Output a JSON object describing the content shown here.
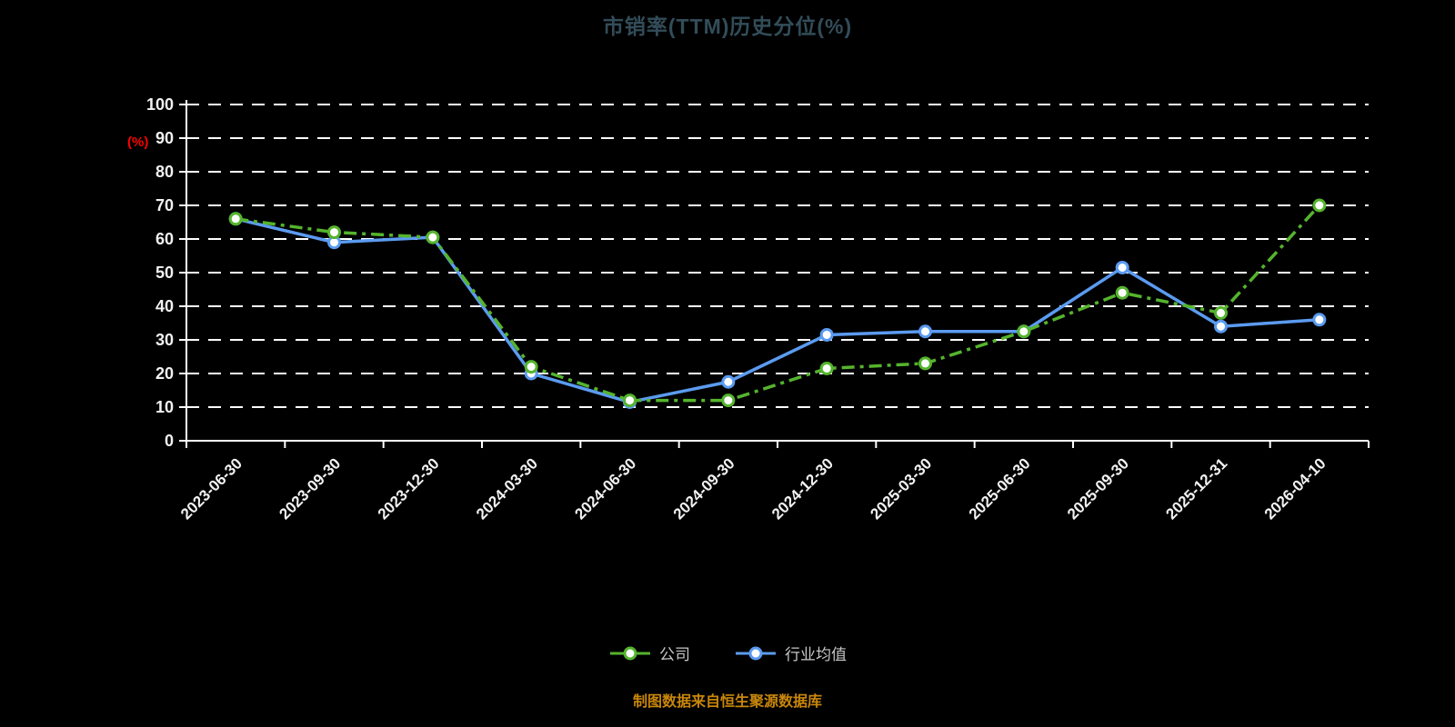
{
  "title": "市销率(TTM)历史分位(%)",
  "y_axis_unit": "(%)",
  "footer": "制图数据来自恒生聚源数据库",
  "legend": [
    {
      "label": "公司",
      "color": "#55b42d"
    },
    {
      "label": "行业均值",
      "color": "#5b9bf0"
    }
  ],
  "chart_data": {
    "type": "line",
    "title": "市销率(TTM)历史分位(%)",
    "ylabel": "(%)",
    "ylim": [
      0,
      100
    ],
    "ytick_step": 10,
    "grid": "dashed-horizontal",
    "legend_position": "bottom",
    "categories": [
      "2023-06-30",
      "2023-09-30",
      "2023-12-30",
      "2024-03-30",
      "2024-06-30",
      "2024-09-30",
      "2024-12-30",
      "2025-03-30",
      "2025-06-30",
      "2025-09-30",
      "2025-12-31",
      "2026-04-10"
    ],
    "series": [
      {
        "id": "industry",
        "name": "行业均值",
        "color": "#5b9bf0",
        "dash": "",
        "values": [
          66,
          59,
          60.5,
          20,
          11.5,
          17.5,
          31.5,
          32.5,
          32.5,
          51.5,
          34,
          36
        ]
      },
      {
        "id": "company",
        "name": "公司",
        "color": "#55b42d",
        "dash": "14 6 4 6",
        "values": [
          66,
          62,
          60.5,
          22,
          12,
          12,
          21.5,
          23,
          32.5,
          44,
          38,
          70
        ]
      }
    ]
  }
}
